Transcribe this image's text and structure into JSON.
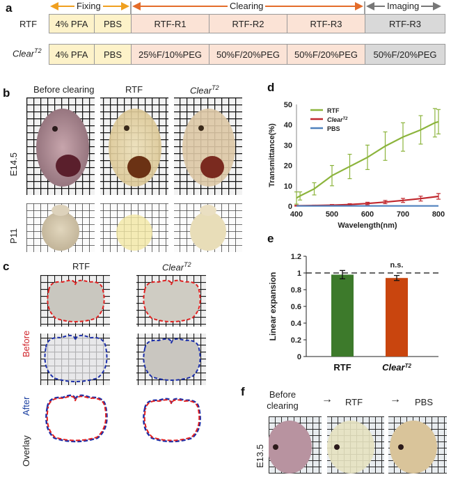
{
  "panel_a": {
    "label": "a",
    "phases": {
      "fixing": "Fixing",
      "clearing": "Clearing",
      "imaging": "Imaging"
    },
    "rows": [
      {
        "name": "RTF",
        "cells": [
          "4% PFA",
          "PBS",
          "RTF-R1",
          "RTF-R2",
          "RTF-R3",
          "RTF-R3"
        ]
      },
      {
        "name": "Clear",
        "name_sup": "T2",
        "cells": [
          "4% PFA",
          "PBS",
          "25%F/10%PEG",
          "50%F/20%PEG",
          "50%F/20%PEG",
          "50%F/20%PEG"
        ]
      }
    ]
  },
  "panel_b": {
    "label": "b",
    "columns": [
      "Before clearing",
      "RTF",
      "Clear"
    ],
    "column_sup": "T2",
    "rows": [
      "E14.5",
      "P11"
    ]
  },
  "panel_c": {
    "label": "c",
    "columns": [
      "RTF",
      "Clear"
    ],
    "column_sup": "T2",
    "rows": [
      "Before",
      "After",
      "Overlay"
    ]
  },
  "panel_f": {
    "label": "f",
    "columns": [
      "Before clearing",
      "RTF",
      "PBS"
    ],
    "row": "E13.5",
    "arrow": "→"
  },
  "chart_data": [
    {
      "panel": "d",
      "type": "line",
      "xlabel": "Wavelength(nm)",
      "ylabel": "Transmittance(%)",
      "xlim": [
        400,
        800
      ],
      "ylim": [
        0,
        50
      ],
      "xticks": [
        400,
        500,
        600,
        700,
        800
      ],
      "yticks": [
        0,
        10,
        20,
        30,
        40,
        50
      ],
      "legend": "top-left",
      "series": [
        {
          "name": "RTF",
          "color": "#8cb43c",
          "x": [
            400,
            410,
            450,
            500,
            550,
            600,
            650,
            700,
            750,
            790,
            800
          ],
          "y": [
            4,
            5,
            8.5,
            15,
            19.5,
            24,
            29.5,
            34,
            37.5,
            41,
            41.5
          ],
          "err": [
            3,
            2,
            3,
            5,
            6,
            6,
            7,
            7,
            7,
            7,
            6
          ]
        },
        {
          "name": "Clear",
          "name_sup": "T2",
          "color": "#c0272d",
          "x": [
            400,
            450,
            500,
            550,
            600,
            650,
            700,
            750,
            800
          ],
          "y": [
            0.2,
            0.3,
            0.5,
            0.8,
            1.3,
            2.0,
            2.8,
            3.7,
            4.8
          ],
          "err": [
            0.2,
            0.2,
            0.3,
            0.4,
            0.6,
            0.8,
            1.0,
            1.2,
            1.4
          ]
        },
        {
          "name": "PBS",
          "color": "#4f81bd",
          "x": [
            400,
            500,
            600,
            700,
            800
          ],
          "y": [
            0.1,
            0.1,
            0.1,
            0.1,
            0.1
          ],
          "err": [
            0,
            0,
            0,
            0,
            0
          ]
        }
      ]
    },
    {
      "panel": "e",
      "type": "bar",
      "ylabel": "Linear expansion",
      "categories": [
        "RTF",
        "Clear"
      ],
      "category_sup": [
        "",
        "T2"
      ],
      "values": [
        0.98,
        0.94
      ],
      "errors": [
        0.05,
        0.03
      ],
      "colors": [
        "#3d7a2b",
        "#c9450e"
      ],
      "ylim": [
        0,
        1.2
      ],
      "yticks": [
        0,
        0.2,
        0.4,
        0.6,
        0.8,
        1,
        1.2
      ],
      "reference_line": 1,
      "annotation": "n.s."
    }
  ]
}
